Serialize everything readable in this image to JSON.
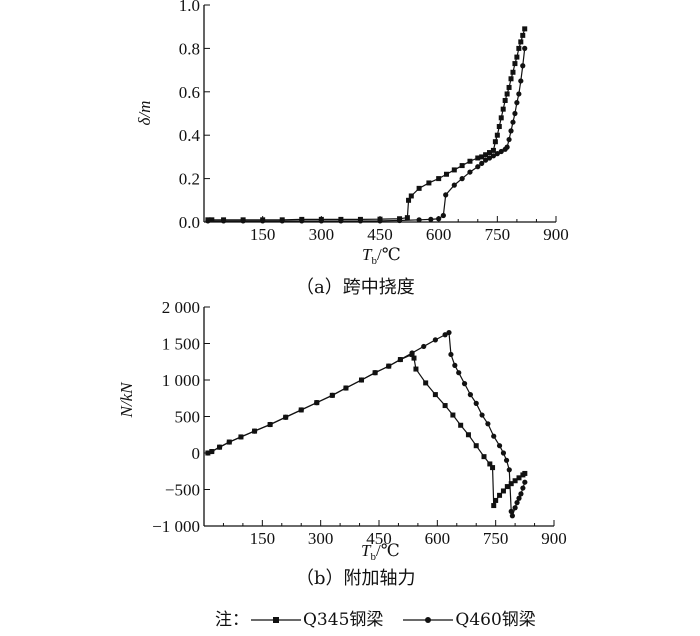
{
  "chart_data": [
    {
      "type": "line",
      "caption": "（a）跨中挠度",
      "ylabel": "δ/m",
      "xlabel_main": "T",
      "xlabel_sub": "b",
      "xlabel_unit": "/℃",
      "xlim": [
        0,
        900
      ],
      "ylim": [
        0,
        1.0
      ],
      "xticks": [
        150,
        300,
        450,
        600,
        750,
        900
      ],
      "xtick_labels": [
        "150",
        "300",
        "450",
        "600",
        "750",
        "900"
      ],
      "yticks": [
        0,
        0.2,
        0.4,
        0.6,
        0.8,
        1.0
      ],
      "ytick_labels": [
        "0.0",
        "0.2",
        "0.4",
        "0.6",
        "0.8",
        "1.0"
      ],
      "series": [
        {
          "name": "Q345钢梁",
          "marker": "square",
          "x": [
            10,
            20,
            50,
            100,
            150,
            200,
            250,
            300,
            350,
            400,
            450,
            500,
            520,
            523,
            530,
            550,
            575,
            600,
            620,
            640,
            660,
            680,
            700,
            710,
            720,
            730,
            740,
            745,
            750,
            755,
            760,
            765,
            770,
            775,
            780,
            785,
            790,
            795,
            800,
            805,
            810,
            815,
            820
          ],
          "y": [
            0.01,
            0.01,
            0.01,
            0.01,
            0.01,
            0.01,
            0.012,
            0.012,
            0.012,
            0.012,
            0.013,
            0.015,
            0.02,
            0.1,
            0.12,
            0.155,
            0.18,
            0.2,
            0.22,
            0.24,
            0.26,
            0.28,
            0.295,
            0.3,
            0.31,
            0.32,
            0.33,
            0.37,
            0.4,
            0.44,
            0.48,
            0.52,
            0.56,
            0.59,
            0.62,
            0.66,
            0.69,
            0.73,
            0.76,
            0.8,
            0.83,
            0.86,
            0.89
          ]
        },
        {
          "name": "Q460钢梁",
          "marker": "circle",
          "x": [
            10,
            50,
            100,
            150,
            200,
            250,
            300,
            350,
            400,
            450,
            500,
            550,
            580,
            600,
            612,
            618,
            640,
            660,
            680,
            700,
            710,
            720,
            730,
            740,
            750,
            760,
            770,
            775,
            780,
            785,
            790,
            795,
            800,
            805,
            810,
            815,
            820
          ],
          "y": [
            0.005,
            0.005,
            0.005,
            0.005,
            0.005,
            0.005,
            0.005,
            0.005,
            0.005,
            0.005,
            0.007,
            0.01,
            0.012,
            0.015,
            0.03,
            0.125,
            0.17,
            0.2,
            0.23,
            0.255,
            0.27,
            0.285,
            0.295,
            0.305,
            0.315,
            0.325,
            0.335,
            0.345,
            0.38,
            0.42,
            0.46,
            0.5,
            0.55,
            0.59,
            0.65,
            0.72,
            0.8
          ]
        }
      ]
    },
    {
      "type": "line",
      "caption": "（b）附加轴力",
      "ylabel": "N/kN",
      "xlabel_main": "T",
      "xlabel_sub": "b",
      "xlabel_unit": "/℃",
      "xlim": [
        0,
        900
      ],
      "ylim": [
        -1000,
        2000
      ],
      "xticks": [
        150,
        300,
        450,
        600,
        750,
        900
      ],
      "xtick_labels": [
        "150",
        "300",
        "450",
        "600",
        "750",
        "900"
      ],
      "yticks": [
        -1000,
        -500,
        0,
        500,
        1000,
        1500,
        2000
      ],
      "ytick_labels": [
        "−1 000",
        "−500",
        "0",
        "500",
        "1 000",
        "1 500",
        "2 000"
      ],
      "series": [
        {
          "name": "Q345钢梁",
          "marker": "square",
          "x": [
            10,
            20,
            40,
            65,
            95,
            130,
            170,
            210,
            250,
            290,
            330,
            365,
            405,
            440,
            475,
            505,
            535,
            540,
            545,
            570,
            595,
            620,
            640,
            660,
            680,
            700,
            720,
            735,
            742,
            745,
            750,
            760,
            770,
            780,
            790,
            800,
            810,
            820,
            825
          ],
          "y": [
            0,
            20,
            80,
            150,
            220,
            300,
            390,
            490,
            590,
            690,
            790,
            890,
            1000,
            1100,
            1190,
            1280,
            1350,
            1300,
            1150,
            960,
            800,
            650,
            520,
            380,
            250,
            100,
            -50,
            -150,
            -200,
            -720,
            -650,
            -580,
            -520,
            -460,
            -420,
            -380,
            -340,
            -300,
            -280
          ]
        },
        {
          "name": "Q460钢梁",
          "marker": "circle",
          "x": [
            10,
            20,
            40,
            65,
            95,
            130,
            170,
            210,
            250,
            290,
            330,
            365,
            405,
            440,
            475,
            505,
            535,
            565,
            595,
            620,
            630,
            635,
            645,
            655,
            670,
            685,
            700,
            715,
            730,
            745,
            760,
            770,
            778,
            785,
            790,
            793,
            800,
            805,
            810,
            815,
            820,
            825
          ],
          "y": [
            0,
            20,
            80,
            150,
            220,
            300,
            390,
            490,
            590,
            690,
            790,
            890,
            1000,
            1100,
            1190,
            1280,
            1370,
            1460,
            1550,
            1620,
            1650,
            1350,
            1200,
            1100,
            950,
            800,
            680,
            520,
            400,
            230,
            100,
            0,
            -100,
            -230,
            -800,
            -860,
            -750,
            -680,
            -620,
            -560,
            -480,
            -400
          ]
        }
      ]
    }
  ],
  "legend": {
    "note": "注：",
    "items": [
      "Q345钢梁",
      "Q460钢梁"
    ]
  }
}
